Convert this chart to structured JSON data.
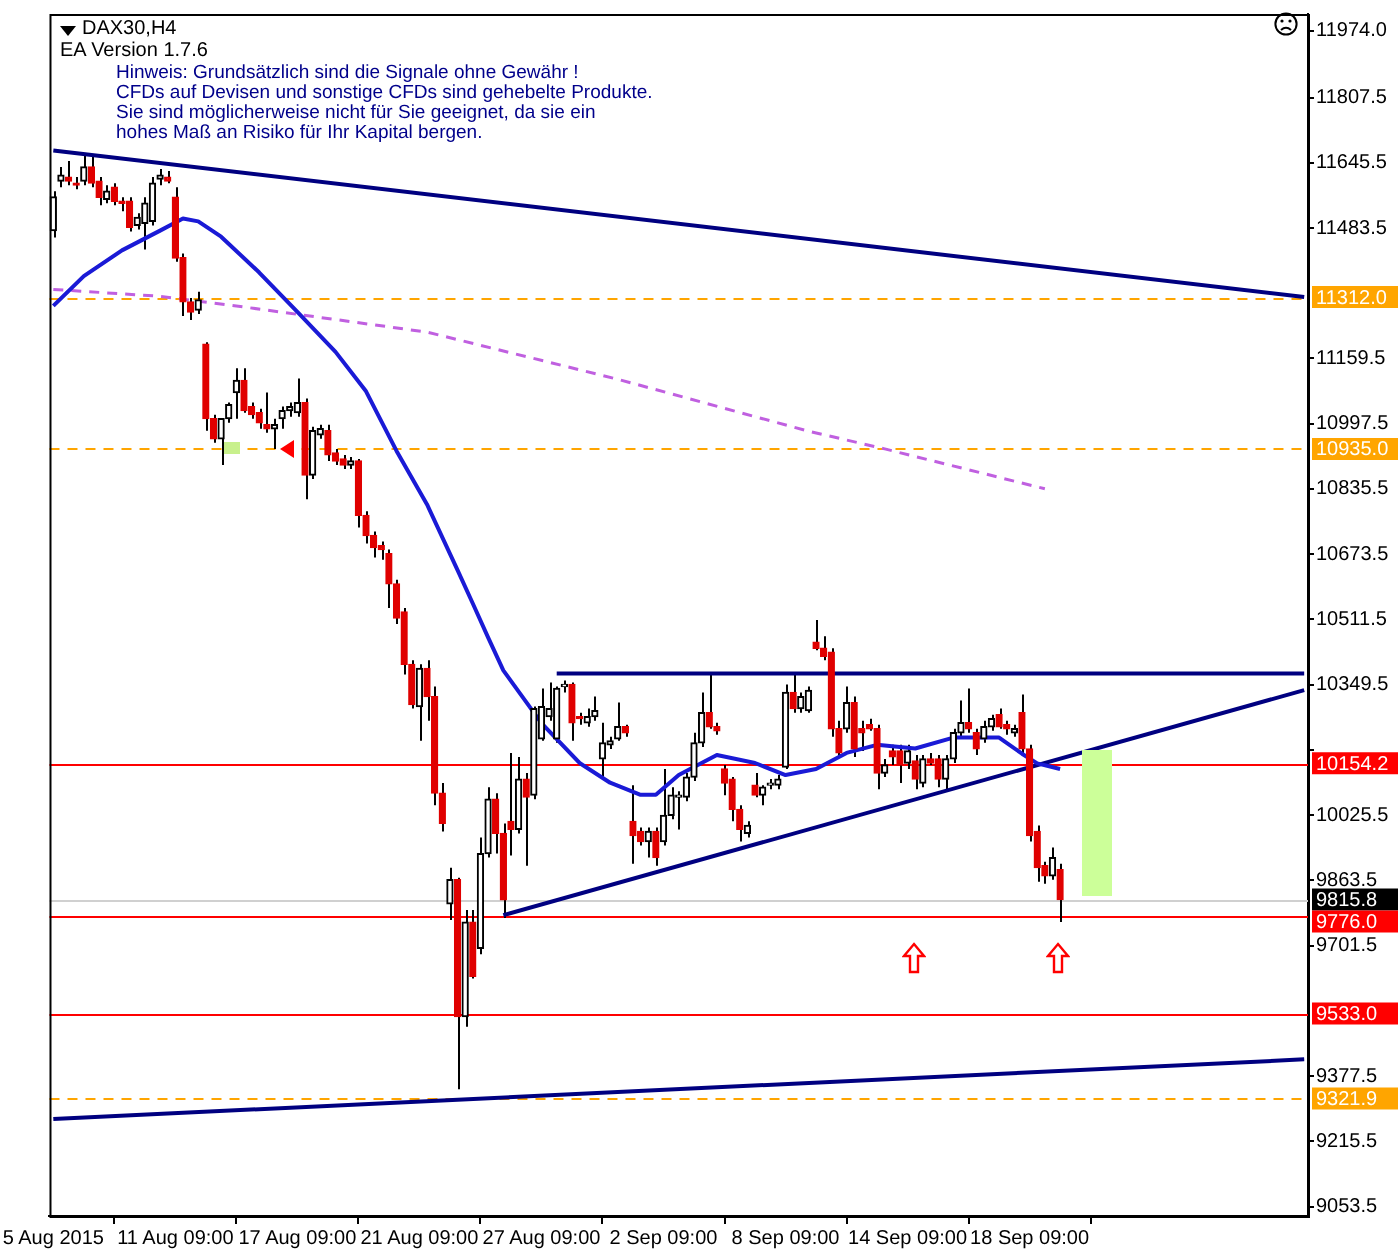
{
  "chart_data": {
    "type": "candlestick",
    "title": "DAX30,H4",
    "categories": [
      "5 Aug 2015",
      null,
      null,
      null,
      null,
      null,
      null,
      null,
      null,
      null,
      null,
      null,
      null,
      null,
      null,
      null,
      "11 Aug 09:00",
      null,
      null,
      null,
      null,
      null,
      null,
      null,
      null,
      null,
      null,
      null,
      null,
      null,
      null,
      null,
      "17 Aug 09:00",
      null,
      null,
      null,
      null,
      null,
      null,
      null,
      null,
      null,
      null,
      null,
      null,
      null,
      null,
      null,
      "21 Aug 09:00",
      null,
      null,
      null,
      null,
      null,
      null,
      null,
      null,
      null,
      null,
      null,
      null,
      null,
      null,
      null,
      "27 Aug 09:00",
      null,
      null,
      null,
      null,
      null,
      null,
      null,
      null,
      null,
      null,
      null,
      null,
      null,
      null,
      null,
      "2 Sep 09:00",
      null,
      null,
      null,
      null,
      null,
      null,
      null,
      null,
      null,
      null,
      null,
      null,
      null,
      null,
      null,
      "8 Sep 09:00",
      null,
      null,
      null,
      null,
      null,
      null,
      null,
      null,
      null,
      null,
      null,
      null,
      null,
      null,
      null,
      "14 Sep 09:00",
      null,
      null,
      null,
      null,
      null,
      null,
      null,
      null,
      null,
      null,
      null,
      null,
      null,
      null,
      null,
      "18 Sep 09:00",
      null,
      null,
      null,
      null,
      null,
      null,
      null,
      null,
      null,
      null,
      null,
      null,
      null,
      null,
      null,
      null,
      null,
      null,
      null,
      null,
      null,
      null,
      null,
      null,
      null,
      null,
      null,
      null,
      null,
      null,
      null,
      null,
      null,
      null,
      null,
      null
    ],
    "ohlc": [
      [
        11477,
        11575,
        11460,
        11561
      ],
      [
        11600,
        11635,
        11585,
        11615
      ],
      [
        11610,
        11650,
        11590,
        11600
      ],
      [
        11595,
        11610,
        11580,
        11590
      ],
      [
        11600,
        11670,
        11590,
        11635
      ],
      [
        11635,
        11665,
        11585,
        11595
      ],
      [
        11600,
        11610,
        11540,
        11560
      ],
      [
        11555,
        11590,
        11545,
        11575
      ],
      [
        11585,
        11595,
        11540,
        11550
      ],
      [
        11550,
        11560,
        11525,
        11545
      ],
      [
        11550,
        11560,
        11475,
        11485
      ],
      [
        11490,
        11520,
        11480,
        11510
      ],
      [
        11495,
        11560,
        11430,
        11545
      ],
      [
        11500,
        11610,
        11490,
        11595
      ],
      [
        11605,
        11630,
        11590,
        11615
      ],
      [
        11610,
        11625,
        11595,
        11600
      ],
      [
        11560,
        11585,
        11400,
        11409
      ],
      [
        11410,
        11420,
        11265,
        11300
      ],
      [
        11300,
        11310,
        11255,
        11275
      ],
      [
        11280,
        11325,
        11270,
        11305
      ],
      [
        11195,
        11200,
        10980,
        11010
      ],
      [
        11010,
        11020,
        10950,
        10960
      ],
      [
        10960,
        11010,
        10895,
        11010
      ],
      [
        11010,
        11050,
        11000,
        11045
      ],
      [
        11075,
        11135,
        11010,
        11105
      ],
      [
        11105,
        11135,
        11025,
        11030
      ],
      [
        11040,
        11050,
        11010,
        11020
      ],
      [
        11025,
        11035,
        10985,
        11000
      ],
      [
        10995,
        11075,
        10975,
        10985
      ],
      [
        10985,
        11010,
        10935,
        10995
      ],
      [
        11010,
        11040,
        10985,
        11030
      ],
      [
        11030,
        11050,
        11015,
        11040
      ],
      [
        11025,
        11110,
        11015,
        11050
      ],
      [
        11050,
        11060,
        10810,
        10870
      ],
      [
        10870,
        10990,
        10860,
        10980
      ],
      [
        10970,
        10995,
        10960,
        10985
      ],
      [
        10980,
        10995,
        10905,
        10920
      ],
      [
        10925,
        10935,
        10895,
        10905
      ],
      [
        10910,
        10920,
        10885,
        10895
      ],
      [
        10895,
        10915,
        10885,
        10905
      ],
      [
        10905,
        10910,
        10740,
        10770
      ],
      [
        10770,
        10780,
        10700,
        10720
      ],
      [
        10720,
        10730,
        10665,
        10690
      ],
      [
        10695,
        10705,
        10660,
        10685
      ],
      [
        10675,
        10685,
        10540,
        10600
      ],
      [
        10600,
        10610,
        10500,
        10515
      ],
      [
        10530,
        10540,
        10375,
        10400
      ],
      [
        10400,
        10410,
        10290,
        10300
      ],
      [
        10295,
        10400,
        10210,
        10390
      ],
      [
        10390,
        10410,
        10260,
        10320
      ],
      [
        10320,
        10345,
        10050,
        10080
      ],
      [
        10080,
        10105,
        9985,
        10005
      ],
      [
        9805,
        9895,
        9765,
        9865
      ],
      [
        9865,
        9870,
        9345,
        9525
      ],
      [
        9525,
        9790,
        9500,
        9760
      ],
      [
        9760,
        9790,
        9620,
        9625
      ],
      [
        9695,
        9970,
        9680,
        9930
      ],
      [
        9930,
        10095,
        9920,
        10065
      ],
      [
        10065,
        10080,
        9930,
        9980
      ],
      [
        9980,
        10005,
        9770,
        9815
      ],
      [
        10010,
        10180,
        9925,
        9990
      ],
      [
        9990,
        10170,
        9980,
        10115
      ],
      [
        10115,
        10130,
        9900,
        10070
      ],
      [
        10075,
        10295,
        10065,
        10290
      ],
      [
        10215,
        10340,
        10210,
        10295
      ],
      [
        10270,
        10355,
        10260,
        10290
      ],
      [
        10215,
        10345,
        10205,
        10340
      ],
      [
        10345,
        10360,
        10330,
        10350
      ],
      [
        10350,
        10355,
        10210,
        10255
      ],
      [
        10270,
        10280,
        10250,
        10265
      ],
      [
        10255,
        10290,
        10245,
        10270
      ],
      [
        10270,
        10320,
        10260,
        10285
      ],
      [
        10165,
        10255,
        10120,
        10205
      ],
      [
        10200,
        10220,
        10190,
        10210
      ],
      [
        10215,
        10305,
        10210,
        10245
      ],
      [
        10245,
        10250,
        10220,
        10230
      ],
      [
        10010,
        10100,
        9905,
        9975
      ],
      [
        9985,
        9995,
        9950,
        9960
      ],
      [
        9960,
        9995,
        9920,
        9985
      ],
      [
        9985,
        9995,
        9900,
        9920
      ],
      [
        9960,
        10140,
        9950,
        10025
      ],
      [
        10025,
        10095,
        10015,
        10075
      ],
      [
        10070,
        10085,
        9990,
        10075
      ],
      [
        10070,
        10130,
        10060,
        10120
      ],
      [
        10120,
        10230,
        10110,
        10205
      ],
      [
        10205,
        10330,
        10195,
        10280
      ],
      [
        10280,
        10375,
        10240,
        10245
      ],
      [
        10245,
        10255,
        10225,
        10235
      ],
      [
        10140,
        10150,
        10075,
        10105
      ],
      [
        10115,
        10120,
        10010,
        10040
      ],
      [
        10040,
        10050,
        9960,
        9990
      ],
      [
        9980,
        10010,
        9970,
        10000
      ],
      [
        10100,
        10130,
        10070,
        10075
      ],
      [
        10075,
        10100,
        10050,
        10095
      ],
      [
        10100,
        10115,
        10090,
        10105
      ],
      [
        10100,
        10125,
        10090,
        10115
      ],
      [
        10145,
        10350,
        10140,
        10330
      ],
      [
        10330,
        10380,
        10280,
        10290
      ],
      [
        10290,
        10330,
        10280,
        10320
      ],
      [
        10285,
        10345,
        10280,
        10335
      ],
      [
        10455,
        10510,
        10435,
        10440
      ],
      [
        10440,
        10470,
        10410,
        10420
      ],
      [
        10430,
        10440,
        10220,
        10240
      ],
      [
        10240,
        10260,
        10170,
        10180
      ],
      [
        10240,
        10345,
        10230,
        10305
      ],
      [
        10305,
        10320,
        10170,
        10190
      ],
      [
        10240,
        10260,
        10185,
        10230
      ],
      [
        10250,
        10265,
        10235,
        10240
      ],
      [
        10240,
        10250,
        10090,
        10130
      ],
      [
        10130,
        10165,
        10120,
        10150
      ],
      [
        10185,
        10200,
        10150,
        10170
      ],
      [
        10185,
        10200,
        10105,
        10150
      ],
      [
        10155,
        10200,
        10140,
        10185
      ],
      [
        10160,
        10175,
        10090,
        10115
      ],
      [
        10105,
        10175,
        10095,
        10165
      ],
      [
        10165,
        10180,
        10150,
        10155
      ],
      [
        10165,
        10175,
        10095,
        10115
      ],
      [
        10115,
        10175,
        10085,
        10165
      ],
      [
        10165,
        10240,
        10155,
        10230
      ],
      [
        10230,
        10310,
        10220,
        10255
      ],
      [
        10255,
        10340,
        10230,
        10240
      ],
      [
        10230,
        10240,
        10175,
        10190
      ],
      [
        10215,
        10260,
        10205,
        10245
      ],
      [
        10245,
        10275,
        10235,
        10265
      ],
      [
        10275,
        10290,
        10240,
        10245
      ],
      [
        10250,
        10260,
        10225,
        10240
      ],
      [
        10230,
        10250,
        10220,
        10240
      ],
      [
        10280,
        10325,
        10180,
        10190
      ],
      [
        10190,
        10200,
        9960,
        9975
      ],
      [
        9985,
        10000,
        9860,
        9895
      ],
      [
        9900,
        9910,
        9855,
        9875
      ],
      [
        9875,
        9945,
        9865,
        9920
      ],
      [
        9890,
        9905,
        9760,
        9815.8
      ],
      null,
      null,
      null,
      null,
      null,
      null,
      null,
      null,
      null,
      null,
      null,
      null,
      null,
      null,
      null,
      null,
      null,
      null,
      null,
      null,
      null,
      null,
      null,
      null,
      null,
      null,
      null,
      null,
      null,
      null,
      null,
      null
    ],
    "ylim": [
      9030,
      12015
    ],
    "yticks": [
      {
        "value": 11974,
        "label": "11974.0"
      },
      11807.5,
      11645.5,
      11483.5,
      11159.5,
      10997.5,
      10835.5,
      10673.5,
      10511.5,
      10349.5,
      {
        "value": 10187.5,
        "label": null
      },
      10025.5,
      9863.5,
      9701.5,
      9377.5,
      9215.5,
      9053.5
    ],
    "grid": false,
    "series": [
      {
        "type": "line",
        "color": "#1a1ad6",
        "values": [
          11290,
          null,
          null,
          null,
          11364,
          null,
          null,
          null,
          null,
          11428,
          null,
          null,
          null,
          null,
          11477,
          null,
          null,
          11507,
          null,
          11500,
          null,
          null,
          11462,
          null,
          null,
          null,
          null,
          11373,
          null,
          null,
          null,
          null,
          11275,
          null,
          null,
          null,
          null,
          11176,
          null,
          null,
          null,
          11078,
          null,
          null,
          null,
          10930,
          null,
          null,
          null,
          10797,
          null,
          null,
          null,
          10634,
          null,
          10551,
          null,
          10467,
          null,
          10385,
          null,
          null,
          null,
          null,
          10254,
          null,
          null,
          null,
          null,
          10155,
          null,
          null,
          null,
          10106,
          null,
          null,
          null,
          10076,
          null,
          10076,
          null,
          null,
          10125,
          null,
          null,
          null,
          null,
          10175,
          null,
          null,
          null,
          null,
          10155,
          null,
          null,
          null,
          10125,
          null,
          null,
          null,
          10140,
          null,
          null,
          null,
          10180,
          null,
          null,
          null,
          10200,
          null,
          null,
          null,
          null,
          10191,
          null,
          null,
          null,
          null,
          10218,
          null,
          null,
          null,
          null,
          null,
          10218,
          null,
          null,
          10178,
          null,
          10154,
          null,
          null,
          10140,
          null,
          null,
          null,
          null,
          null,
          null,
          null,
          null,
          null,
          null,
          null,
          null,
          null,
          null,
          null,
          null,
          null,
          null,
          null,
          null,
          null,
          null,
          null,
          null,
          null,
          null,
          null,
          null,
          null,
          null,
          null,
          null
        ]
      },
      {
        "type": "line",
        "color": "#c060e0",
        "line_style": "dashed",
        "values": [
          11331,
          null,
          null,
          null,
          null,
          null,
          null,
          null,
          null,
          null,
          null,
          null,
          null,
          null,
          11314,
          null,
          null,
          null,
          null,
          null,
          null,
          null,
          null,
          null,
          11290,
          null,
          null,
          null,
          null,
          null,
          null,
          null,
          null,
          null,
          null,
          null,
          null,
          null,
          null,
          null,
          null,
          null,
          null,
          null,
          null,
          null,
          null,
          null,
          null,
          11225,
          null,
          null,
          null,
          null,
          null,
          null,
          null,
          null,
          null,
          null,
          null,
          null,
          null,
          null,
          null,
          null,
          null,
          null,
          null,
          null,
          null,
          null,
          null,
          null,
          11108,
          null,
          null,
          null,
          null,
          null,
          null,
          null,
          null,
          null,
          null,
          null,
          null,
          null,
          null,
          null,
          null,
          null,
          null,
          null,
          null,
          null,
          null,
          null,
          null,
          10979,
          null,
          null,
          null,
          null,
          null,
          null,
          null,
          null,
          null,
          10935,
          null,
          null,
          null,
          null,
          null,
          null,
          null,
          null,
          null,
          null,
          null,
          null,
          null,
          null,
          null,
          null,
          null,
          null,
          null,
          null,
          10836,
          null,
          null,
          null,
          null,
          null,
          null,
          null,
          null,
          null,
          null,
          null,
          null,
          null,
          null,
          null,
          null,
          null,
          null,
          null,
          null,
          null,
          null,
          null,
          null,
          null,
          null,
          null,
          null,
          null,
          null,
          null,
          null,
          null,
          null
        ]
      },
      {
        "type": "line",
        "color": "#000080",
        "values": [
          11676,
          null,
          null,
          null,
          null,
          null,
          null,
          null,
          null,
          null,
          null,
          null,
          null,
          null,
          null,
          null,
          null,
          null,
          null,
          null,
          null,
          null,
          null,
          null,
          null,
          null,
          null,
          null,
          null,
          null,
          null,
          null,
          null,
          null,
          null,
          null,
          null,
          null,
          null,
          null,
          null,
          null,
          null,
          null,
          null,
          null,
          null,
          null,
          null,
          null,
          null,
          null,
          null,
          null,
          null,
          null,
          null,
          null,
          null,
          null,
          null,
          null,
          null,
          null,
          null,
          null,
          null,
          null,
          null,
          null,
          null,
          null,
          null,
          null,
          null,
          null,
          null,
          null,
          null,
          null,
          null,
          null,
          null,
          null,
          null,
          null,
          null,
          null,
          null,
          null,
          null,
          null,
          null,
          null,
          null,
          null,
          null,
          null,
          null,
          null,
          null,
          null,
          null,
          null,
          null,
          null,
          null,
          null,
          null,
          null,
          null,
          null,
          null,
          null,
          null,
          null,
          null,
          null,
          null,
          null,
          null,
          null,
          null,
          null,
          null,
          null,
          null,
          null,
          null,
          null,
          null,
          null,
          null,
          null,
          null,
          null,
          null,
          null,
          null,
          null,
          null,
          null,
          null,
          null,
          null,
          null,
          null,
          null,
          null,
          null,
          null,
          null,
          null,
          null,
          null,
          null,
          null,
          null,
          null,
          null,
          null,
          null,
          null,
          null,
          11312
        ]
      },
      {
        "type": "line",
        "color": "#000080",
        "values": [
          9271,
          null,
          null,
          null,
          null,
          null,
          null,
          null,
          null,
          null,
          null,
          null,
          null,
          null,
          null,
          null,
          null,
          null,
          null,
          null,
          null,
          null,
          null,
          null,
          null,
          null,
          null,
          null,
          null,
          null,
          null,
          null,
          null,
          null,
          null,
          null,
          null,
          null,
          null,
          null,
          null,
          null,
          null,
          null,
          null,
          null,
          null,
          null,
          null,
          null,
          null,
          null,
          null,
          null,
          null,
          null,
          null,
          null,
          null,
          null,
          null,
          null,
          null,
          null,
          null,
          null,
          null,
          null,
          null,
          null,
          null,
          null,
          null,
          null,
          null,
          null,
          null,
          null,
          null,
          null,
          null,
          null,
          null,
          null,
          null,
          null,
          null,
          null,
          null,
          null,
          null,
          null,
          null,
          null,
          null,
          null,
          null,
          null,
          null,
          null,
          null,
          null,
          null,
          null,
          null,
          null,
          null,
          null,
          null,
          null,
          null,
          null,
          null,
          null,
          null,
          null,
          null,
          null,
          null,
          null,
          null,
          null,
          null,
          null,
          null,
          null,
          null,
          null,
          null,
          null,
          null,
          null,
          null,
          null,
          null,
          null,
          null,
          null,
          null,
          null,
          null,
          null,
          null,
          null,
          null,
          null,
          null,
          null,
          null,
          null,
          null,
          null,
          null,
          null,
          null,
          null,
          null,
          null,
          null,
          null,
          null,
          null,
          null,
          null,
          9419
        ]
      },
      {
        "type": "line",
        "color": "#000080",
        "values": [
          null,
          null,
          null,
          null,
          null,
          null,
          null,
          null,
          null,
          null,
          null,
          null,
          null,
          null,
          null,
          null,
          null,
          null,
          null,
          null,
          null,
          null,
          null,
          null,
          null,
          null,
          null,
          null,
          null,
          null,
          null,
          null,
          null,
          null,
          null,
          null,
          null,
          null,
          null,
          null,
          null,
          null,
          null,
          null,
          null,
          null,
          null,
          null,
          null,
          null,
          null,
          null,
          null,
          null,
          null,
          null,
          null,
          null,
          null,
          null,
          null,
          null,
          null,
          null,
          null,
          null,
          10377,
          null,
          null,
          null,
          null,
          null,
          null,
          null,
          null,
          null,
          null,
          null,
          null,
          null,
          null,
          null,
          null,
          null,
          null,
          null,
          null,
          null,
          null,
          null,
          null,
          null,
          null,
          null,
          null,
          null,
          null,
          null,
          null,
          null,
          null,
          null,
          null,
          null,
          null,
          null,
          null,
          null,
          null,
          null,
          null,
          null,
          null,
          null,
          null,
          null,
          null,
          null,
          null,
          null,
          null,
          null,
          null,
          null,
          null,
          null,
          null,
          null,
          null,
          null,
          null,
          null,
          null,
          null,
          null,
          null,
          null,
          null,
          null,
          null,
          null,
          null,
          null,
          null,
          null,
          null,
          null,
          null,
          null,
          null,
          null,
          null,
          null,
          null,
          null,
          null,
          null,
          null,
          null,
          null,
          null,
          null,
          null,
          null,
          10377
        ]
      },
      {
        "type": "line",
        "color": "#000080",
        "values": [
          null,
          null,
          null,
          null,
          null,
          null,
          null,
          null,
          null,
          null,
          null,
          null,
          null,
          null,
          null,
          null,
          null,
          null,
          null,
          null,
          null,
          null,
          null,
          null,
          null,
          null,
          null,
          null,
          null,
          null,
          null,
          null,
          null,
          null,
          null,
          null,
          null,
          null,
          null,
          null,
          null,
          null,
          null,
          null,
          null,
          null,
          null,
          null,
          null,
          null,
          null,
          null,
          null,
          null,
          null,
          null,
          null,
          null,
          null,
          9777,
          null,
          null,
          null,
          null,
          null,
          null,
          null,
          null,
          null,
          null,
          null,
          null,
          null,
          null,
          null,
          null,
          null,
          null,
          null,
          null,
          null,
          null,
          null,
          null,
          null,
          null,
          null,
          null,
          null,
          null,
          null,
          null,
          null,
          null,
          null,
          null,
          null,
          null,
          null,
          null,
          null,
          null,
          null,
          null,
          null,
          null,
          null,
          null,
          null,
          null,
          null,
          null,
          null,
          null,
          null,
          null,
          null,
          null,
          null,
          null,
          null,
          null,
          null,
          null,
          null,
          null,
          null,
          null,
          null,
          null,
          null,
          null,
          null,
          null,
          null,
          null,
          null,
          null,
          null,
          null,
          null,
          null,
          null,
          null,
          null,
          null,
          null,
          null,
          null,
          null,
          null,
          null,
          null,
          null,
          null,
          null,
          null,
          null,
          null,
          null,
          null,
          null,
          null,
          null,
          10336
        ]
      }
    ],
    "ref_lines": [
      {
        "axis": "y",
        "value": 11312.0,
        "label": "11312.0",
        "color": "#ffa500",
        "line_style": "dashed"
      },
      {
        "axis": "y",
        "value": 10935.0,
        "label": "10935.0",
        "color": "#ffa500",
        "line_style": "dashed"
      },
      {
        "axis": "y",
        "value": 10154.2,
        "label": "10154.2",
        "color": "#ff0000"
      },
      {
        "axis": "y",
        "value": 9815.8,
        "label": "9815.8",
        "color": "#d0d0d0"
      },
      {
        "axis": "y",
        "value": 9776.0,
        "label": "9776.0",
        "color": "#ff0000"
      },
      {
        "axis": "y",
        "value": 9533.0,
        "label": "9533.0",
        "color": "#ff0000"
      },
      {
        "axis": "y",
        "value": 9321.9,
        "label": "9321.9",
        "color": "#ffa500",
        "line_style": "dashed"
      }
    ],
    "annotations": [
      "EA Version 1.7.6",
      "Hinweis: Grundsätzlich sind die Signale ohne Gewähr !",
      "CFDs auf Devisen und sonstige CFDs sind gehebelte Produkte.",
      "Sie sind möglicherweise nicht für Sie geeignet, da sie ein",
      "hohes Maß an Risiko für Ihr Kapital bergen."
    ]
  }
}
